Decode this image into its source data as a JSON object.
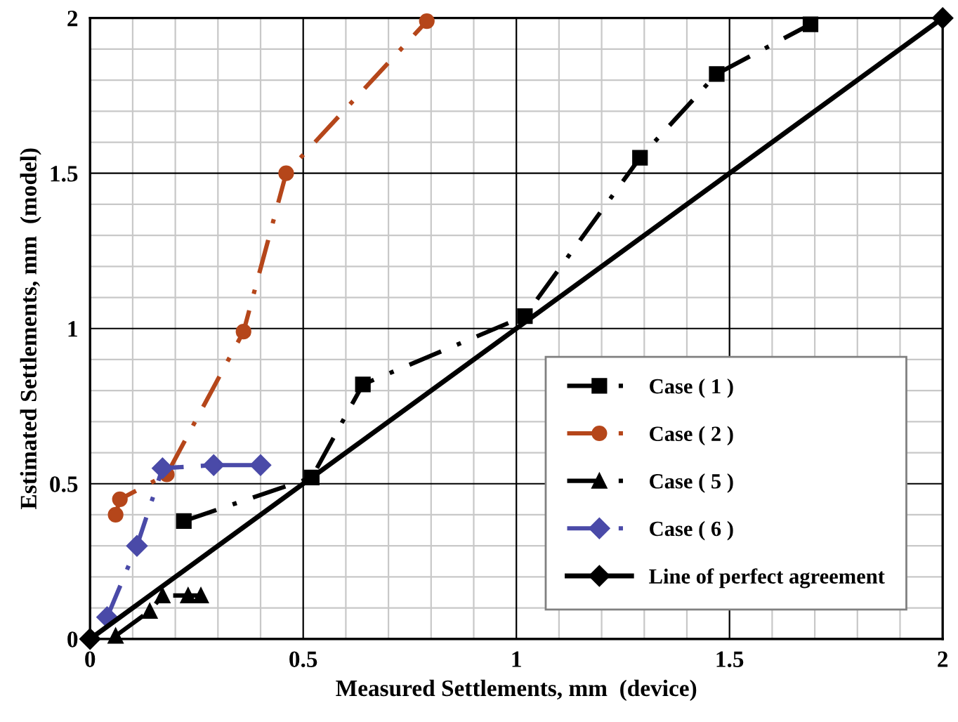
{
  "chart_data": {
    "type": "line",
    "xlabel": "Measured Settlements, mm  (device)",
    "ylabel": "Estimated Settlements, mm  (model)",
    "xlim": [
      0,
      2
    ],
    "ylim": [
      0,
      2
    ],
    "xticks": [
      0,
      {
        "value": 0.1,
        "label": null
      },
      {
        "value": 0.2,
        "label": null
      },
      {
        "value": 0.3,
        "label": null
      },
      {
        "value": 0.4,
        "label": null
      },
      0.5,
      {
        "value": 0.6,
        "label": null
      },
      {
        "value": 0.7,
        "label": null
      },
      {
        "value": 0.8,
        "label": null
      },
      {
        "value": 0.9,
        "label": null
      },
      1,
      {
        "value": 1.1,
        "label": null
      },
      {
        "value": 1.2,
        "label": null
      },
      {
        "value": 1.3,
        "label": null
      },
      {
        "value": 1.4,
        "label": null
      },
      1.5,
      {
        "value": 1.6,
        "label": null
      },
      {
        "value": 1.7,
        "label": null
      },
      {
        "value": 1.8,
        "label": null
      },
      {
        "value": 1.9,
        "label": null
      },
      2
    ],
    "yticks": [
      0,
      {
        "value": 0.1,
        "label": null
      },
      {
        "value": 0.2,
        "label": null
      },
      {
        "value": 0.3,
        "label": null
      },
      {
        "value": 0.4,
        "label": null
      },
      0.5,
      {
        "value": 0.6,
        "label": null
      },
      {
        "value": 0.7,
        "label": null
      },
      {
        "value": 0.8,
        "label": null
      },
      {
        "value": 0.9,
        "label": null
      },
      1,
      {
        "value": 1.1,
        "label": null
      },
      {
        "value": 1.2,
        "label": null
      },
      {
        "value": 1.3,
        "label": null
      },
      {
        "value": 1.4,
        "label": null
      },
      1.5,
      {
        "value": 1.6,
        "label": null
      },
      {
        "value": 1.7,
        "label": null
      },
      {
        "value": 1.8,
        "label": null
      },
      {
        "value": 1.9,
        "label": null
      },
      2
    ],
    "grid": true,
    "legend": "bottom right",
    "series": [
      {
        "name": "Case ( 1 )",
        "color": "#000000",
        "marker": "square",
        "line_style": "dashdot",
        "x": [
          0.22,
          0.52,
          0.64,
          1.02,
          1.29,
          1.47,
          1.69
        ],
        "values": [
          0.38,
          0.52,
          0.82,
          1.04,
          1.55,
          1.82,
          1.98
        ]
      },
      {
        "name": "Case ( 2 )",
        "color": "#b5461a",
        "marker": "circle",
        "line_style": "dashdot",
        "x": [
          0.06,
          0.07,
          0.18,
          0.36,
          0.46,
          0.79
        ],
        "values": [
          0.4,
          0.45,
          0.53,
          0.99,
          1.5,
          1.99
        ]
      },
      {
        "name": "Case ( 5 )",
        "color": "#000000",
        "marker": "triangle",
        "line_style": "dashdot",
        "x": [
          0.06,
          0.14,
          0.17,
          0.23,
          0.26
        ],
        "values": [
          0.01,
          0.09,
          0.14,
          0.14,
          0.14
        ]
      },
      {
        "name": "Case ( 6 )",
        "color": "#4a4aa8",
        "marker": "diamond",
        "line_style": "dashdot",
        "x": [
          0.04,
          0.11,
          0.17,
          0.29,
          0.4
        ],
        "values": [
          0.07,
          0.3,
          0.55,
          0.56,
          0.56
        ]
      },
      {
        "name": "Line of perfect agreement",
        "color": "#000000",
        "marker": "diamond",
        "line_style": "solid",
        "x": [
          0,
          2
        ],
        "values": [
          0,
          2
        ]
      }
    ]
  }
}
